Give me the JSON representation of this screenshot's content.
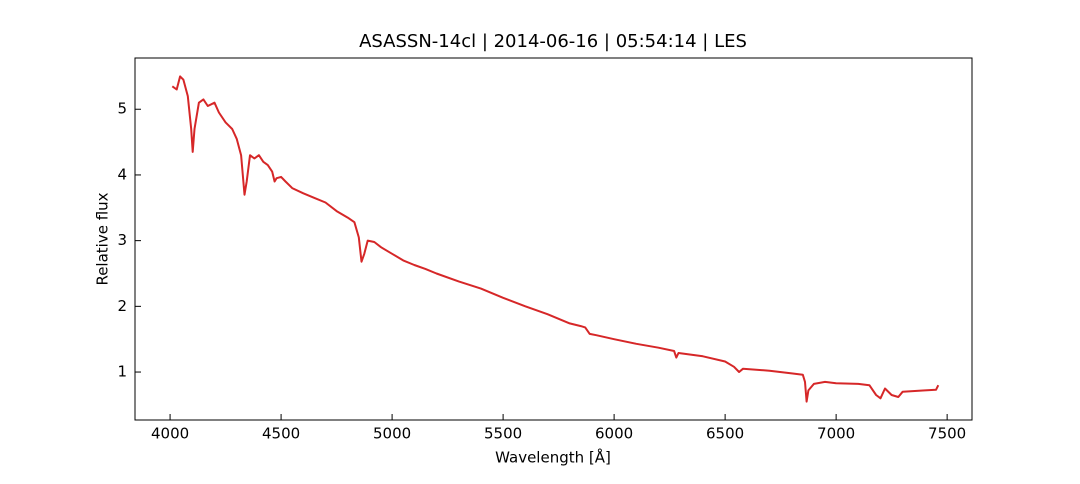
{
  "chart_data": {
    "type": "line",
    "title": "ASASSN-14cl | 2014-06-16 | 05:54:14 | LES",
    "x_label": "Wavelength [Å]",
    "y_label": "Relative flux",
    "xlim": [
      3842,
      7612
    ],
    "ylim": [
      0.27,
      5.78
    ],
    "xticks": [
      4000,
      4500,
      5000,
      5500,
      6000,
      6500,
      7000,
      7500
    ],
    "yticks": [
      1,
      2,
      3,
      4,
      5
    ],
    "series": [
      {
        "color": "#d62728",
        "x": [
          4010,
          4030,
          4045,
          4060,
          4080,
          4095,
          4102,
          4110,
          4130,
          4150,
          4170,
          4200,
          4220,
          4250,
          4280,
          4300,
          4320,
          4335,
          4345,
          4360,
          4380,
          4400,
          4420,
          4440,
          4460,
          4471,
          4480,
          4500,
          4520,
          4550,
          4600,
          4650,
          4700,
          4750,
          4800,
          4830,
          4850,
          4862,
          4875,
          4890,
          4920,
          4950,
          5000,
          5050,
          5100,
          5150,
          5200,
          5300,
          5400,
          5500,
          5600,
          5700,
          5800,
          5850,
          5870,
          5890,
          5920,
          6000,
          6100,
          6200,
          6270,
          6280,
          6290,
          6400,
          6500,
          6540,
          6563,
          6580,
          6700,
          6800,
          6850,
          6860,
          6867,
          6875,
          6900,
          6950,
          7000,
          7100,
          7150,
          7180,
          7200,
          7220,
          7250,
          7280,
          7300,
          7400,
          7450,
          7460
        ],
        "values": [
          5.35,
          5.3,
          5.5,
          5.45,
          5.2,
          4.7,
          4.35,
          4.7,
          5.1,
          5.15,
          5.05,
          5.1,
          4.95,
          4.8,
          4.7,
          4.55,
          4.3,
          3.7,
          3.9,
          4.3,
          4.25,
          4.3,
          4.2,
          4.15,
          4.05,
          3.9,
          3.95,
          3.97,
          3.9,
          3.8,
          3.72,
          3.65,
          3.58,
          3.45,
          3.35,
          3.28,
          3.05,
          2.68,
          2.8,
          3.0,
          2.98,
          2.9,
          2.8,
          2.7,
          2.63,
          2.57,
          2.5,
          2.38,
          2.27,
          2.13,
          2.0,
          1.88,
          1.74,
          1.7,
          1.68,
          1.58,
          1.56,
          1.5,
          1.43,
          1.37,
          1.32,
          1.22,
          1.29,
          1.24,
          1.16,
          1.08,
          1.0,
          1.05,
          1.02,
          0.98,
          0.96,
          0.85,
          0.55,
          0.72,
          0.82,
          0.85,
          0.83,
          0.82,
          0.8,
          0.65,
          0.6,
          0.75,
          0.65,
          0.62,
          0.7,
          0.72,
          0.73,
          0.8
        ]
      }
    ]
  }
}
